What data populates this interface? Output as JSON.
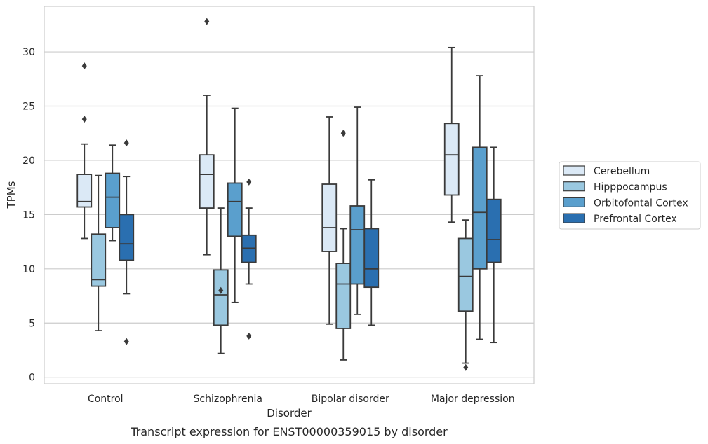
{
  "chart_data": {
    "type": "box",
    "xlabel": "Disorder",
    "ylabel": "TPMs",
    "caption": "Transcript expression for ENST00000359015 by disorder",
    "ylim": [
      -0.6,
      34.2
    ],
    "yticks": [
      0,
      5,
      10,
      15,
      20,
      25,
      30
    ],
    "grid": true,
    "legend_position": "right",
    "categories": [
      "Control",
      "Schizophrenia",
      "Bipolar disorder",
      "Major depression"
    ],
    "series": [
      {
        "name": "Cerebellum",
        "color": "#dbe9f6",
        "boxes": [
          {
            "whisker_low": 12.8,
            "q1": 15.7,
            "median": 16.2,
            "q3": 18.7,
            "whisker_high": 21.5,
            "outliers": [
              23.8,
              28.7
            ]
          },
          {
            "whisker_low": 11.3,
            "q1": 15.6,
            "median": 18.7,
            "q3": 20.5,
            "whisker_high": 26.0,
            "outliers": [
              32.8
            ]
          },
          {
            "whisker_low": 4.9,
            "q1": 11.6,
            "median": 13.8,
            "q3": 17.8,
            "whisker_high": 24.0,
            "outliers": []
          },
          {
            "whisker_low": 14.3,
            "q1": 16.8,
            "median": 20.5,
            "q3": 23.4,
            "whisker_high": 30.4,
            "outliers": []
          }
        ]
      },
      {
        "name": "Hipppocampus",
        "color": "#9ac8e0",
        "boxes": [
          {
            "whisker_low": 4.3,
            "q1": 8.4,
            "median": 9.0,
            "q3": 13.2,
            "whisker_high": 18.6,
            "outliers": []
          },
          {
            "whisker_low": 2.2,
            "q1": 4.8,
            "median": 7.6,
            "q3": 9.9,
            "whisker_high": 15.6,
            "outliers": [
              8.0
            ]
          },
          {
            "whisker_low": 1.6,
            "q1": 4.5,
            "median": 8.6,
            "q3": 10.5,
            "whisker_high": 13.7,
            "outliers": [
              22.5
            ]
          },
          {
            "whisker_low": 1.3,
            "q1": 6.1,
            "median": 9.3,
            "q3": 12.8,
            "whisker_high": 14.5,
            "outliers": [
              0.9
            ]
          }
        ]
      },
      {
        "name": "Orbitofontal Cortex",
        "color": "#5a9fcd",
        "boxes": [
          {
            "whisker_low": 12.6,
            "q1": 13.8,
            "median": 16.6,
            "q3": 18.8,
            "whisker_high": 21.4,
            "outliers": []
          },
          {
            "whisker_low": 6.9,
            "q1": 13.0,
            "median": 16.2,
            "q3": 17.9,
            "whisker_high": 24.8,
            "outliers": []
          },
          {
            "whisker_low": 5.8,
            "q1": 8.6,
            "median": 13.6,
            "q3": 15.8,
            "whisker_high": 24.9,
            "outliers": []
          },
          {
            "whisker_low": 3.5,
            "q1": 10.0,
            "median": 15.2,
            "q3": 21.2,
            "whisker_high": 27.8,
            "outliers": []
          }
        ]
      },
      {
        "name": "Prefrontal Cortex",
        "color": "#2a6fb0",
        "boxes": [
          {
            "whisker_low": 7.7,
            "q1": 10.8,
            "median": 12.3,
            "q3": 15.0,
            "whisker_high": 18.5,
            "outliers": [
              21.6,
              3.3
            ]
          },
          {
            "whisker_low": 8.6,
            "q1": 10.6,
            "median": 11.9,
            "q3": 13.1,
            "whisker_high": 15.6,
            "outliers": [
              18.0,
              3.8
            ]
          },
          {
            "whisker_low": 4.8,
            "q1": 8.3,
            "median": 10.0,
            "q3": 13.7,
            "whisker_high": 18.2,
            "outliers": []
          },
          {
            "whisker_low": 3.2,
            "q1": 10.6,
            "median": 12.7,
            "q3": 16.4,
            "whisker_high": 21.2,
            "outliers": []
          }
        ]
      }
    ]
  }
}
